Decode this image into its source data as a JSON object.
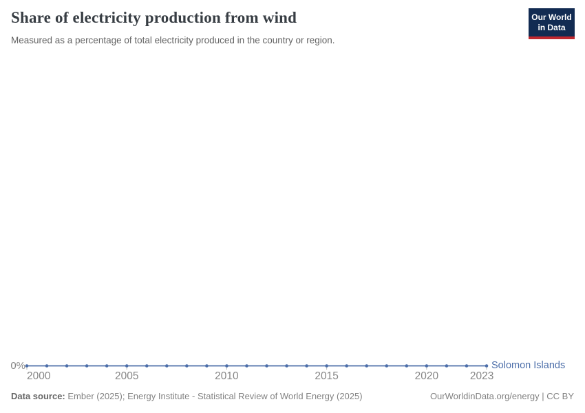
{
  "header": {
    "title": "Share of electricity production from wind",
    "subtitle": "Measured as a percentage of total electricity produced in the country or region."
  },
  "logo": {
    "line1": "Our World",
    "line2": "in Data",
    "bg_color": "#122b52",
    "accent_color": "#c0282f"
  },
  "chart_data": {
    "type": "line",
    "title": "Share of electricity production from wind",
    "x": [
      2000,
      2001,
      2002,
      2003,
      2004,
      2005,
      2006,
      2007,
      2008,
      2009,
      2010,
      2011,
      2012,
      2013,
      2014,
      2015,
      2016,
      2017,
      2018,
      2019,
      2020,
      2021,
      2022,
      2023
    ],
    "series": [
      {
        "name": "Solomon Islands",
        "color": "#4C6EA9",
        "values": [
          0,
          0,
          0,
          0,
          0,
          0,
          0,
          0,
          0,
          0,
          0,
          0,
          0,
          0,
          0,
          0,
          0,
          0,
          0,
          0,
          0,
          0,
          0,
          0
        ]
      }
    ],
    "x_tick_labels": [
      "2000",
      "2005",
      "2010",
      "2015",
      "2020",
      "2023"
    ],
    "y_tick_labels": [
      "0%"
    ],
    "xlim": [
      2000,
      2023
    ],
    "grid": false,
    "legend_position": "end-of-line",
    "unit": "%"
  },
  "footer": {
    "sources_label": "Data source:",
    "sources_text": " Ember (2025); Energy Institute - Statistical Review of World Energy (2025)",
    "link_text": "OurWorldinData.org/energy | CC BY"
  }
}
